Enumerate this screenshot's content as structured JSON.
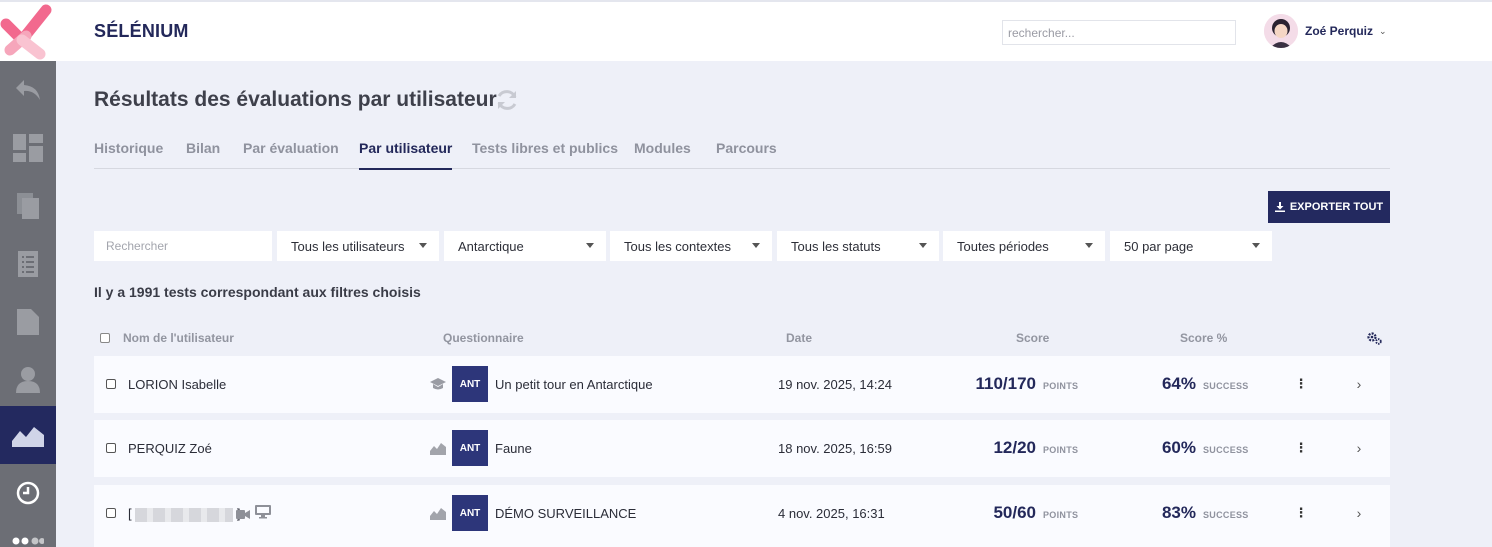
{
  "header": {
    "brand": "SÉLÉNIUM",
    "search_placeholder": "rechercher...",
    "user_name": "Zoé Perquiz"
  },
  "colors": {
    "accent": "#23295f",
    "sidebar": "#6c6e75",
    "logo_pink": "#f2698e"
  },
  "sidebar": {
    "items": [
      {
        "icon": "back-arrow-icon"
      },
      {
        "icon": "dashboard-icon"
      },
      {
        "icon": "copy-icon"
      },
      {
        "icon": "list-icon"
      },
      {
        "icon": "document-icon"
      },
      {
        "icon": "user-icon"
      },
      {
        "icon": "chart-icon",
        "active": true
      },
      {
        "icon": "clock-icon"
      },
      {
        "icon": "more-icon"
      }
    ]
  },
  "page": {
    "title": "Résultats des évaluations par utilisateur",
    "tabs": [
      "Historique",
      "Bilan",
      "Par évaluation",
      "Par utilisateur",
      "Tests libres et publics",
      "Modules",
      "Parcours"
    ],
    "active_tab": "Par utilisateur",
    "export_label": "EXPORTER TOUT"
  },
  "filters": {
    "search_placeholder": "Rechercher",
    "selects": [
      "Tous les utilisateurs",
      "Antarctique",
      "Tous les contextes",
      "Tous les statuts",
      "Toutes périodes",
      "50 par page"
    ]
  },
  "result_count": "Il y a 1991 tests correspondant aux filtres choisis",
  "table": {
    "headers": {
      "name": "Nom de l'utilisateur",
      "quiz": "Questionnaire",
      "date": "Date",
      "score": "Score",
      "pct": "Score %"
    },
    "rows": [
      {
        "user": "LORION Isabelle",
        "quiz_icon": "graduation-cap-icon",
        "badge": "ANT",
        "quiz": "Un petit tour en Antarctique",
        "date": "19 nov. 2025, 14:24",
        "score": "110/170",
        "points": "POINTS",
        "pct": "64%",
        "status": "SUCCESS"
      },
      {
        "user": "PERQUIZ Zoé",
        "quiz_icon": "chart-icon",
        "badge": "ANT",
        "quiz": "Faune",
        "date": "18 nov. 2025, 16:59",
        "score": "12/20",
        "points": "POINTS",
        "pct": "60%",
        "status": "SUCCESS"
      },
      {
        "user": "[",
        "user_suffix": "]",
        "redacted": true,
        "quiz_icon": "chart-icon",
        "badge": "ANT",
        "quiz": "DÉMO SURVEILLANCE",
        "date": "4 nov. 2025, 16:31",
        "score": "50/60",
        "points": "POINTS",
        "pct": "83%",
        "status": "SUCCESS"
      }
    ]
  }
}
